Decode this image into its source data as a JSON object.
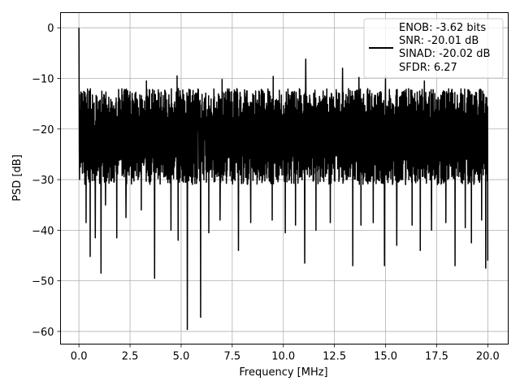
{
  "chart_data": {
    "type": "line",
    "title": "",
    "xlabel": "Frequency [MHz]",
    "ylabel": "PSD [dB]",
    "xlim": [
      -0.9,
      21.0
    ],
    "ylim": [
      -62.5,
      3.0
    ],
    "xticks": [
      0.0,
      2.5,
      5.0,
      7.5,
      10.0,
      12.5,
      15.0,
      17.5,
      20.0
    ],
    "xtick_labels": [
      "0.0",
      "2.5",
      "5.0",
      "7.5",
      "10.0",
      "12.5",
      "15.0",
      "17.5",
      "20.0"
    ],
    "yticks": [
      0,
      -10,
      -20,
      -30,
      -40,
      -50,
      -60
    ],
    "ytick_labels": [
      "0",
      "−10",
      "−20",
      "−30",
      "−40",
      "−50",
      "−60"
    ],
    "grid": true,
    "legend_position": "top-right",
    "line_color": "#000000",
    "legend_lines": [
      "ENOB: -3.62 bits",
      "SNR: -20.01 dB",
      "SINAD: -20.02 dB",
      "SFDR: 6.27"
    ],
    "series": [
      {
        "x_range": [
          0.0,
          20.0
        ],
        "num_points": 2000,
        "peak": {
          "x": 0.0,
          "y": 0.0
        },
        "mean_level": -21.5,
        "typical_range": [
          -31,
          -12
        ],
        "dips": [
          {
            "x": 0.35,
            "y": -38.5
          },
          {
            "x": 0.55,
            "y": -45.2
          },
          {
            "x": 0.8,
            "y": -41.5
          },
          {
            "x": 1.08,
            "y": -48.5
          },
          {
            "x": 1.3,
            "y": -35.0
          },
          {
            "x": 1.85,
            "y": -41.5
          },
          {
            "x": 2.3,
            "y": -37.5
          },
          {
            "x": 3.05,
            "y": -36.0
          },
          {
            "x": 3.7,
            "y": -49.5
          },
          {
            "x": 4.5,
            "y": -40.0
          },
          {
            "x": 4.85,
            "y": -42.0
          },
          {
            "x": 5.3,
            "y": -59.6
          },
          {
            "x": 5.95,
            "y": -57.2
          },
          {
            "x": 6.35,
            "y": -40.5
          },
          {
            "x": 6.9,
            "y": -38.0
          },
          {
            "x": 7.8,
            "y": -44.0
          },
          {
            "x": 8.4,
            "y": -38.5
          },
          {
            "x": 9.45,
            "y": -38.0
          },
          {
            "x": 10.1,
            "y": -40.5
          },
          {
            "x": 10.6,
            "y": -39.0
          },
          {
            "x": 11.05,
            "y": -46.5
          },
          {
            "x": 11.6,
            "y": -40.0
          },
          {
            "x": 12.3,
            "y": -38.5
          },
          {
            "x": 13.4,
            "y": -47.0
          },
          {
            "x": 13.8,
            "y": -39.0
          },
          {
            "x": 14.4,
            "y": -38.5
          },
          {
            "x": 14.95,
            "y": -47.0
          },
          {
            "x": 15.55,
            "y": -43.0
          },
          {
            "x": 16.3,
            "y": -39.0
          },
          {
            "x": 16.7,
            "y": -44.0
          },
          {
            "x": 17.25,
            "y": -40.0
          },
          {
            "x": 17.95,
            "y": -38.5
          },
          {
            "x": 18.4,
            "y": -47.0
          },
          {
            "x": 18.9,
            "y": -39.5
          },
          {
            "x": 19.2,
            "y": -42.5
          },
          {
            "x": 19.7,
            "y": -38.0
          },
          {
            "x": 19.9,
            "y": -47.5
          },
          {
            "x": 20.0,
            "y": -46.0
          }
        ],
        "spikes": [
          {
            "x": 3.3,
            "y": -10.5
          },
          {
            "x": 4.8,
            "y": -9.5
          },
          {
            "x": 7.0,
            "y": -10.2
          },
          {
            "x": 9.5,
            "y": -9.6
          },
          {
            "x": 11.1,
            "y": -6.2
          },
          {
            "x": 12.9,
            "y": -8.0
          },
          {
            "x": 13.7,
            "y": -9.8
          },
          {
            "x": 15.0,
            "y": -9.6
          },
          {
            "x": 16.9,
            "y": -10.5
          }
        ]
      }
    ]
  }
}
